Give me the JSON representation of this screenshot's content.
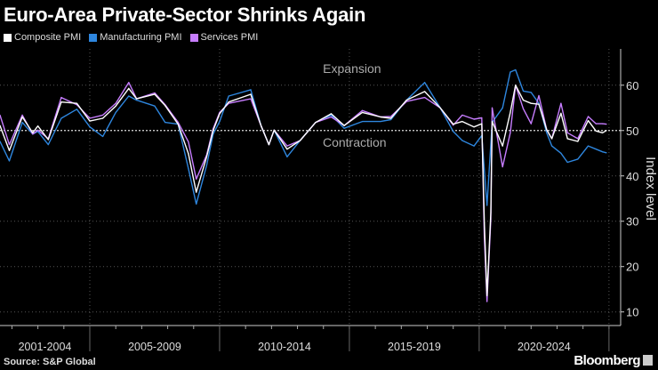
{
  "title": "Euro-Area Private-Sector Shrinks Again",
  "source": "Source: S&P Global",
  "brand": "Bloomberg",
  "chart_data": {
    "type": "line",
    "title": "Euro-Area Private-Sector Shrinks Again",
    "ylabel": "Index level",
    "xlabel": "",
    "ylim": [
      7,
      68
    ],
    "xlim": [
      2001.54,
      2025.45
    ],
    "y_ticks": [
      10,
      20,
      30,
      40,
      50,
      60
    ],
    "y_axis_side": "right",
    "x_period_labels": [
      {
        "label": "2001-2004",
        "from": 2001.54,
        "to": 2005
      },
      {
        "label": "2005-2009",
        "from": 2005,
        "to": 2010
      },
      {
        "label": "2010-2014",
        "from": 2010,
        "to": 2015
      },
      {
        "label": "2015-2019",
        "from": 2015,
        "to": 2020
      },
      {
        "label": "2020-2024",
        "from": 2020,
        "to": 2025
      }
    ],
    "grid": true,
    "reference_line": 50,
    "annotations": [
      {
        "text": "Expansion",
        "x": 2015.1,
        "y": 62.7
      },
      {
        "text": "Contraction",
        "x": 2015.2,
        "y": 46.4
      }
    ],
    "legend_position": "top-left",
    "series": [
      {
        "name": "Composite PMI",
        "color": "#ffffff",
        "x": [
          2001.54,
          2001.9,
          2002.4,
          2002.8,
          2003.0,
          2003.4,
          2003.9,
          2004.5,
          2005.0,
          2005.5,
          2006.0,
          2006.5,
          2006.8,
          2007.5,
          2007.9,
          2008.4,
          2008.8,
          2009.1,
          2009.5,
          2009.75,
          2010.0,
          2010.35,
          2011.2,
          2011.6,
          2011.9,
          2012.1,
          2012.6,
          2013.1,
          2013.7,
          2014.3,
          2014.8,
          2015.5,
          2016.2,
          2016.6,
          2017.2,
          2017.9,
          2018.5,
          2019.0,
          2019.35,
          2019.8,
          2020.1,
          2020.2,
          2020.3,
          2020.45,
          2020.5,
          2020.9,
          2021.2,
          2021.4,
          2021.7,
          2022.0,
          2022.3,
          2022.6,
          2022.8,
          2023.15,
          2023.4,
          2023.8,
          2024.2,
          2024.5,
          2024.75,
          2024.9
        ],
        "y": [
          51.1,
          45.6,
          53.0,
          49.5,
          51.0,
          48.0,
          56.3,
          56.0,
          52.1,
          52.7,
          55.4,
          59.3,
          57.0,
          58.0,
          55.5,
          51.4,
          44.9,
          36.4,
          44.2,
          50.0,
          53.7,
          56.3,
          58.0,
          51.0,
          46.9,
          50.1,
          45.9,
          47.8,
          51.8,
          53.7,
          51.1,
          54.0,
          53.0,
          52.7,
          56.7,
          58.6,
          55.0,
          51.4,
          52.0,
          50.8,
          51.5,
          29.7,
          13.6,
          31.9,
          52.0,
          46.6,
          54.0,
          60.0,
          56.7,
          56.0,
          55.8,
          50.2,
          48.2,
          53.8,
          48.2,
          47.6,
          52.2,
          49.9,
          49.5,
          50.0
        ]
      },
      {
        "name": "Manufacturing PMI",
        "color": "#2e86de",
        "x": [
          2001.54,
          2001.9,
          2002.4,
          2002.8,
          2003.0,
          2003.4,
          2003.9,
          2004.5,
          2005.0,
          2005.5,
          2006.0,
          2006.5,
          2006.8,
          2007.5,
          2007.9,
          2008.4,
          2008.8,
          2009.1,
          2009.5,
          2009.75,
          2010.0,
          2010.35,
          2011.2,
          2011.6,
          2011.9,
          2012.1,
          2012.6,
          2013.1,
          2013.7,
          2014.3,
          2014.8,
          2015.5,
          2016.2,
          2016.6,
          2017.2,
          2017.9,
          2018.5,
          2019.0,
          2019.35,
          2019.8,
          2020.1,
          2020.3,
          2020.5,
          2020.9,
          2021.2,
          2021.4,
          2021.7,
          2022.0,
          2022.3,
          2022.6,
          2022.8,
          2023.15,
          2023.4,
          2023.8,
          2024.2,
          2024.5,
          2024.75,
          2024.9
        ],
        "y": [
          47.6,
          43.3,
          51.8,
          49.2,
          49.8,
          46.9,
          52.7,
          54.7,
          50.8,
          48.7,
          54.0,
          57.6,
          56.7,
          55.4,
          51.8,
          51.4,
          41.6,
          33.8,
          42.3,
          49.2,
          52.0,
          57.6,
          59.0,
          51.0,
          46.9,
          50.1,
          44.2,
          47.8,
          51.8,
          53.4,
          50.5,
          52.0,
          52.0,
          52.4,
          56.7,
          60.6,
          55.0,
          49.8,
          47.8,
          46.6,
          48.9,
          33.5,
          51.8,
          55.0,
          62.9,
          63.4,
          58.7,
          58.4,
          56.0,
          49.5,
          46.6,
          45.0,
          43.0,
          43.7,
          46.6,
          45.9,
          45.3,
          45.1
        ]
      },
      {
        "name": "Services PMI",
        "color": "#c77dff",
        "x": [
          2001.54,
          2001.9,
          2002.4,
          2002.8,
          2003.0,
          2003.4,
          2003.9,
          2004.5,
          2005.0,
          2005.5,
          2006.0,
          2006.5,
          2006.8,
          2007.5,
          2007.9,
          2008.4,
          2008.8,
          2009.1,
          2009.5,
          2009.75,
          2010.0,
          2010.35,
          2011.2,
          2011.6,
          2011.9,
          2012.1,
          2012.6,
          2013.1,
          2013.7,
          2014.3,
          2014.8,
          2015.5,
          2016.2,
          2016.6,
          2017.2,
          2017.9,
          2018.5,
          2019.0,
          2019.35,
          2019.8,
          2020.1,
          2020.2,
          2020.3,
          2020.45,
          2020.5,
          2020.9,
          2021.2,
          2021.4,
          2021.7,
          2022.0,
          2022.3,
          2022.6,
          2022.8,
          2023.15,
          2023.4,
          2023.8,
          2024.2,
          2024.5,
          2024.75,
          2024.9
        ],
        "y": [
          53.4,
          46.9,
          53.4,
          49.2,
          50.1,
          48.2,
          57.3,
          55.7,
          52.7,
          53.4,
          56.0,
          60.6,
          57.0,
          58.3,
          55.7,
          51.8,
          47.5,
          39.3,
          44.6,
          50.4,
          54.0,
          56.0,
          57.0,
          51.0,
          46.9,
          50.1,
          46.6,
          47.8,
          51.8,
          53.0,
          51.1,
          54.4,
          53.0,
          53.1,
          56.4,
          57.3,
          55.0,
          51.2,
          53.4,
          52.5,
          52.8,
          26.4,
          12.3,
          30.5,
          55.0,
          42.0,
          49.5,
          60.0,
          54.8,
          51.5,
          57.7,
          50.2,
          48.2,
          56.0,
          49.5,
          48.2,
          53.1,
          51.5,
          51.5,
          51.4
        ]
      }
    ]
  }
}
